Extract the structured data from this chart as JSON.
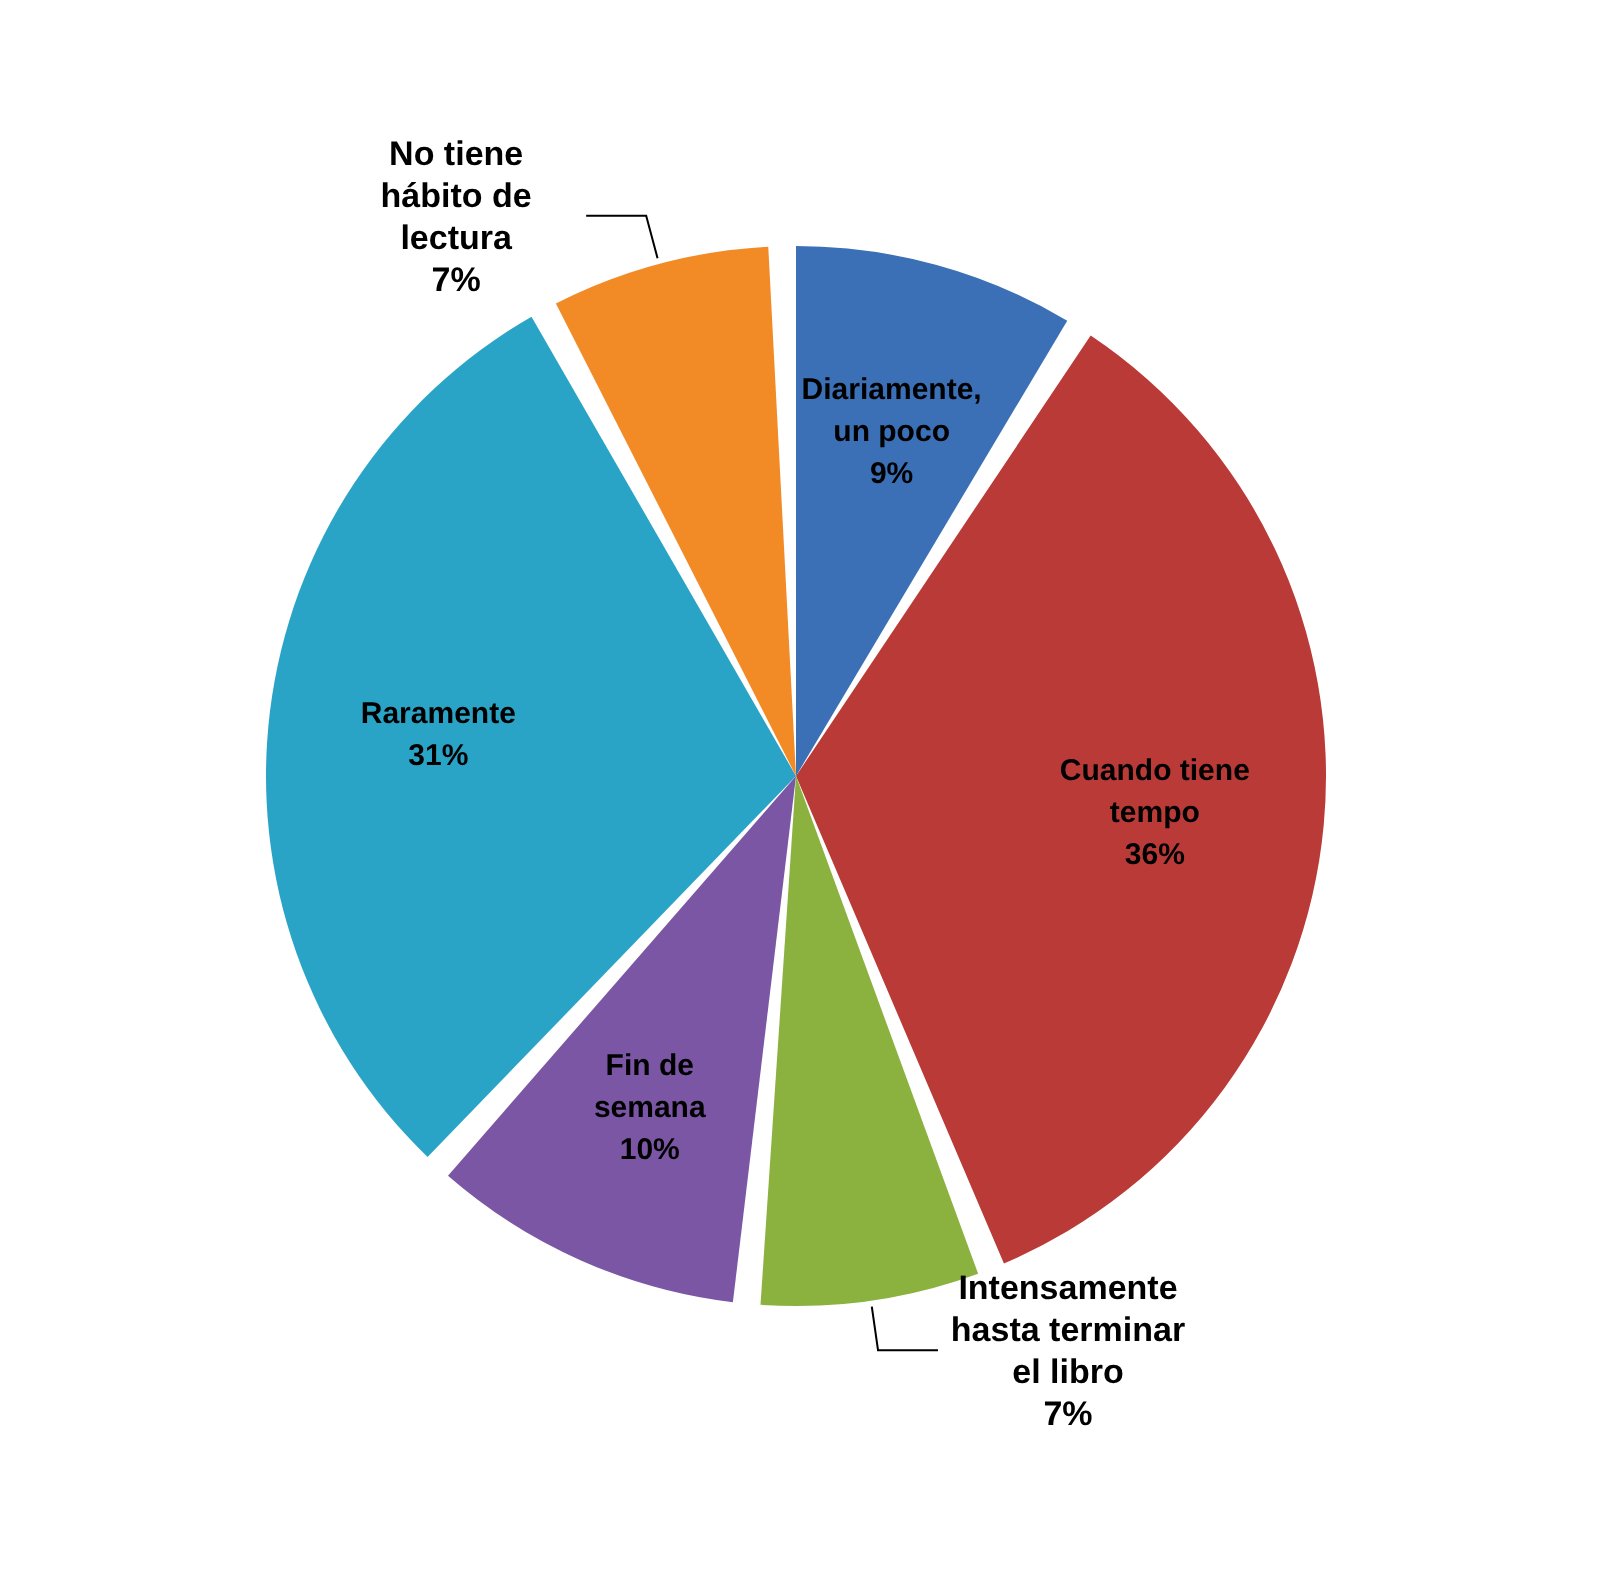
{
  "chart_data": {
    "type": "pie",
    "categories": [
      "Diariamente, un poco",
      "Cuando tiene tempo",
      "Intensamente hasta terminar el libro",
      "Fin de semana",
      "Raramente",
      "No tiene hábito de lectura"
    ],
    "values": [
      9,
      36,
      7,
      10,
      31,
      7
    ],
    "value_labels": [
      "9%",
      "36%",
      "7%",
      "10%",
      "31%",
      "7%"
    ],
    "colors": [
      "#3b6fb6",
      "#b93a37",
      "#8bb13f",
      "#7a56a4",
      "#2aa4c6",
      "#f28a26"
    ]
  }
}
